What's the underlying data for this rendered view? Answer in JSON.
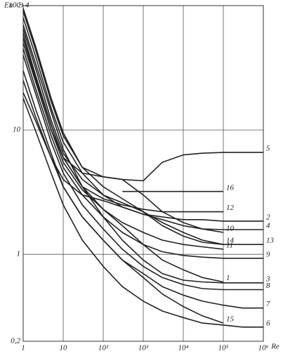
{
  "chart_data": {
    "type": "line",
    "title": "Э 4",
    "y_label": "Eu",
    "x_label": "Re",
    "log_x": true,
    "log_y": true,
    "grid": true,
    "xlim": [
      1,
      1000000
    ],
    "ylim": [
      0.2,
      100
    ],
    "xticks": [
      1,
      10,
      {
        "value": 100,
        "label": "10²"
      },
      {
        "value": 1000,
        "label": "10³"
      },
      {
        "value": 10000,
        "label": "10⁴"
      },
      {
        "value": 100000,
        "label": "10⁵"
      },
      {
        "value": 1000000,
        "label": "10⁶"
      }
    ],
    "yticks": [
      {
        "value": 0.2,
        "label": "0,2"
      },
      1,
      10,
      100
    ],
    "x": [
      1,
      2,
      5,
      10,
      30,
      100,
      300,
      1000,
      3000,
      10000,
      30000,
      100000,
      300000,
      1000000
    ],
    "series": [
      {
        "name": "1",
        "color": "#222",
        "values": [
          60,
          28,
          11,
          6,
          3.5,
          2.3,
          1.7,
          1.2,
          0.9,
          0.75,
          0.65,
          0.6,
          null,
          null
        ]
      },
      {
        "name": "2",
        "color": "#222",
        "values": [
          20,
          12,
          6,
          4,
          3,
          2.7,
          2.4,
          2.1,
          2,
          1.9,
          1.9,
          1.85,
          1.85,
          1.85
        ]
      },
      {
        "name": "3",
        "color": "#222",
        "values": [
          70,
          35,
          14,
          7,
          3.5,
          2,
          1.3,
          0.9,
          0.7,
          0.62,
          0.6,
          0.59,
          0.59,
          0.59
        ]
      },
      {
        "name": "4",
        "color": "#222",
        "values": [
          80,
          40,
          15,
          8,
          4.5,
          3,
          2.4,
          2.1,
          1.9,
          1.7,
          1.6,
          1.58,
          1.58,
          1.58
        ]
      },
      {
        "name": "5",
        "color": "#222",
        "values": [
          90,
          45,
          17,
          9,
          5,
          4.2,
          4,
          3.9,
          5.5,
          6.3,
          6.5,
          6.6,
          6.6,
          6.6
        ]
      },
      {
        "name": "6",
        "color": "#222",
        "values": [
          18,
          10,
          4.5,
          2.5,
          1.3,
          0.8,
          0.55,
          0.42,
          0.35,
          0.31,
          0.28,
          0.27,
          0.26,
          0.26
        ]
      },
      {
        "name": "7",
        "color": "#222",
        "values": [
          25,
          13,
          6,
          3.5,
          2,
          1.3,
          0.9,
          0.7,
          0.55,
          0.47,
          0.42,
          0.39,
          0.37,
          0.37
        ]
      },
      {
        "name": "8",
        "color": "#222",
        "values": [
          40,
          20,
          8,
          4.5,
          2.5,
          1.6,
          1.1,
          0.8,
          0.65,
          0.57,
          0.53,
          0.52,
          0.52,
          0.52
        ]
      },
      {
        "name": "9",
        "color": "#222",
        "values": [
          45,
          22,
          9,
          5,
          3,
          2,
          1.5,
          1.2,
          1.05,
          0.98,
          0.95,
          0.93,
          0.93,
          0.93
        ]
      },
      {
        "name": "10",
        "color": "#222",
        "values": [
          55,
          27,
          11,
          6,
          4.5,
          4.2,
          4,
          3,
          2.2,
          1.8,
          1.6,
          1.5,
          null,
          null
        ]
      },
      {
        "name": "11",
        "color": "#222",
        "values": [
          55,
          26,
          10,
          5.5,
          3.3,
          2.3,
          1.8,
          1.5,
          1.3,
          1.2,
          1.15,
          1.1,
          null,
          null
        ]
      },
      {
        "name": "12",
        "color": "#222",
        "values": [
          50,
          25,
          10,
          6,
          3.5,
          2.8,
          2.5,
          2.3,
          2.2,
          2.2,
          2.2,
          2.2,
          null,
          null
        ]
      },
      {
        "name": "13",
        "color": "#222",
        "values": [
          65,
          32,
          12,
          6.5,
          4,
          3,
          2.6,
          2.2,
          1.7,
          1.4,
          1.25,
          1.2,
          1.2,
          1.2
        ]
      },
      {
        "name": "14",
        "color": "#222",
        "values": [
          95,
          48,
          18,
          9.5,
          5,
          3.5,
          2.8,
          2.2,
          1.8,
          1.5,
          1.3,
          1.2,
          null,
          null
        ]
      },
      {
        "name": "15",
        "color": "#222",
        "values": [
          30,
          15,
          6.5,
          3.5,
          2,
          1.3,
          0.9,
          0.65,
          0.48,
          0.38,
          0.32,
          0.28,
          null,
          null
        ]
      },
      {
        "name": "16",
        "color": "#222",
        "values": [
          null,
          null,
          null,
          null,
          null,
          null,
          3.2,
          3.2,
          3.2,
          3.2,
          3.2,
          3.2,
          null,
          null
        ]
      }
    ]
  }
}
